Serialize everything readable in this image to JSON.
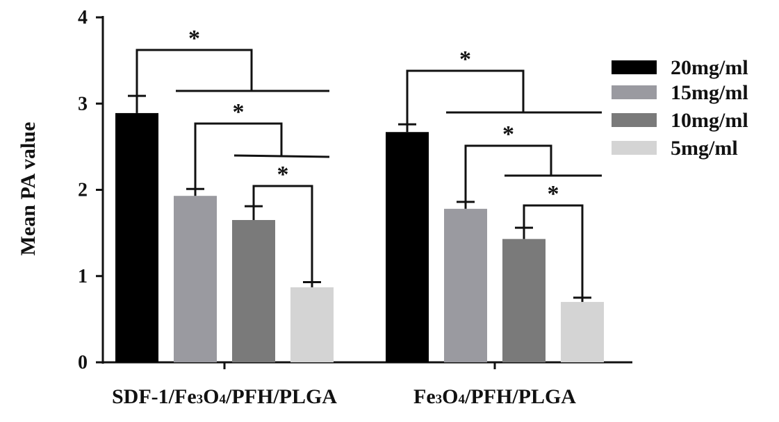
{
  "chart_data": {
    "type": "bar",
    "ylabel": "Mean PA value",
    "ylim": [
      0,
      4
    ],
    "yticks": [
      "0",
      "1",
      "2",
      "3",
      "4"
    ],
    "categories": [
      {
        "base": "SDF-1/Fe",
        "s1": "3",
        "m1": "O",
        "s2": "4",
        "tail": "/PFH/PLGA"
      },
      {
        "base": "Fe",
        "s1": "3",
        "m1": "O",
        "s2": "4",
        "tail": "/PFH/PLGA"
      }
    ],
    "series": [
      {
        "name": "20mg/ml",
        "color": "#000000",
        "values": [
          2.89,
          2.67
        ],
        "errors": [
          0.2,
          0.09
        ]
      },
      {
        "name": "15mg/ml",
        "color": "#9a9aa0",
        "values": [
          1.93,
          1.78
        ],
        "errors": [
          0.08,
          0.08
        ]
      },
      {
        "name": "10mg/ml",
        "color": "#7a7a7a",
        "values": [
          1.65,
          1.43
        ],
        "errors": [
          0.16,
          0.13
        ]
      },
      {
        "name": "5mg/ml",
        "color": "#d4d4d4",
        "values": [
          0.87,
          0.7
        ],
        "errors": [
          0.06,
          0.05
        ]
      }
    ],
    "significance": "*",
    "legend_position": "right"
  }
}
